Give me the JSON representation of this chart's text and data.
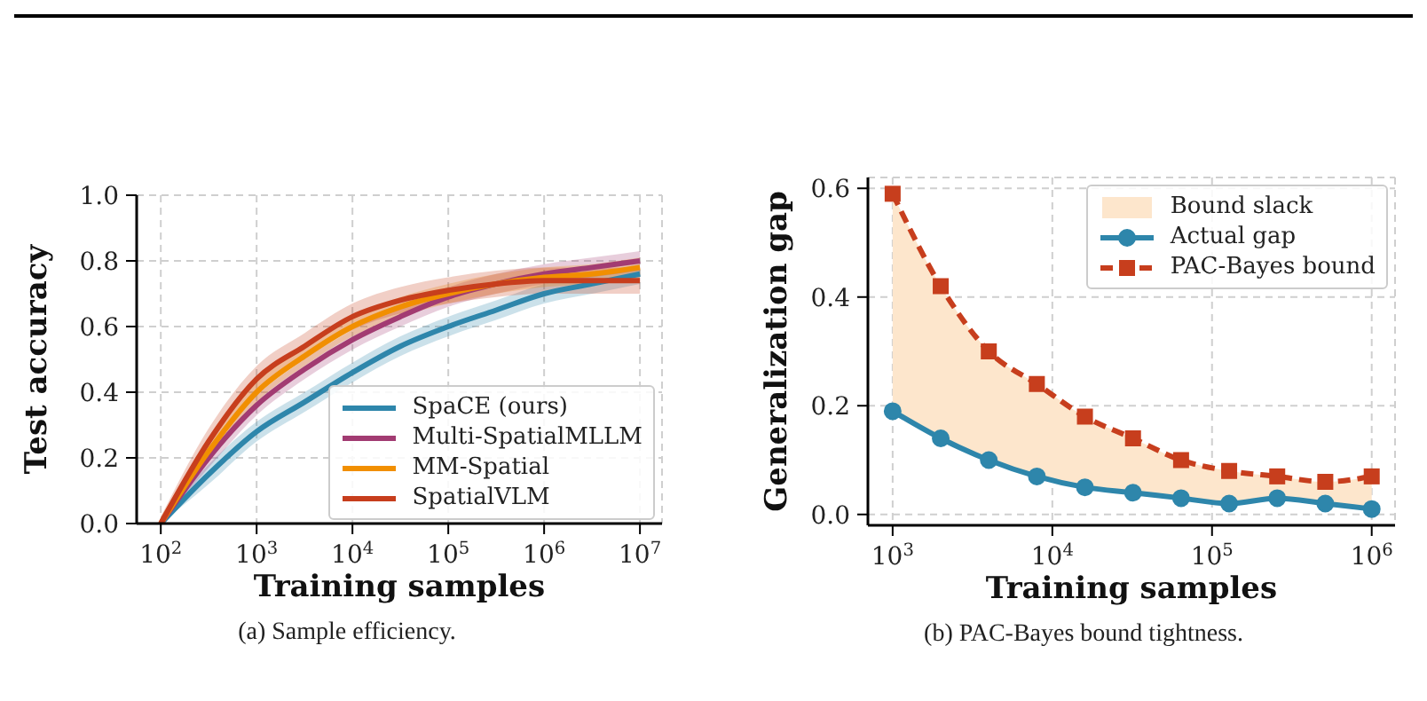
{
  "chart_data": [
    {
      "type": "line",
      "xlabel": "Training samples",
      "ylabel": "Test accuracy",
      "annotations": [
        "(a) Sample efficiency."
      ],
      "x": [
        100,
        316,
        1000,
        3162,
        10000,
        31623,
        100000,
        316228,
        1000000,
        3162278,
        10000000
      ],
      "series": [
        {
          "name": "SpaCE (ours)",
          "color": "#2e86ab",
          "values": [
            0,
            0.15,
            0.28,
            0.37,
            0.46,
            0.54,
            0.6,
            0.65,
            0.7,
            0.73,
            0.76
          ],
          "lower": [
            0,
            0.12,
            0.25,
            0.34,
            0.43,
            0.51,
            0.57,
            0.62,
            0.67,
            0.7,
            0.73
          ],
          "upper": [
            0.02,
            0.18,
            0.31,
            0.4,
            0.49,
            0.57,
            0.63,
            0.68,
            0.73,
            0.76,
            0.79
          ]
        },
        {
          "name": "Multi-SpatialMLLM",
          "color": "#a23b72",
          "values": [
            0,
            0.2,
            0.36,
            0.47,
            0.56,
            0.63,
            0.69,
            0.73,
            0.76,
            0.78,
            0.8
          ],
          "lower": [
            0,
            0.17,
            0.33,
            0.44,
            0.53,
            0.6,
            0.66,
            0.7,
            0.73,
            0.75,
            0.77
          ],
          "upper": [
            0.02,
            0.23,
            0.39,
            0.5,
            0.59,
            0.66,
            0.72,
            0.76,
            0.79,
            0.81,
            0.83
          ]
        },
        {
          "name": "MM-Spatial",
          "color": "#f18f01",
          "values": [
            0,
            0.22,
            0.4,
            0.51,
            0.6,
            0.66,
            0.7,
            0.73,
            0.75,
            0.76,
            0.78
          ],
          "lower": [
            0,
            0.19,
            0.37,
            0.48,
            0.57,
            0.63,
            0.67,
            0.7,
            0.72,
            0.73,
            0.75
          ],
          "upper": [
            0.02,
            0.25,
            0.43,
            0.54,
            0.63,
            0.69,
            0.73,
            0.76,
            0.78,
            0.79,
            0.81
          ]
        },
        {
          "name": "SpatialVLM",
          "color": "#c73e1d",
          "values": [
            0,
            0.25,
            0.44,
            0.54,
            0.63,
            0.68,
            0.71,
            0.73,
            0.74,
            0.74,
            0.74
          ],
          "lower": [
            0,
            0.21,
            0.4,
            0.5,
            0.59,
            0.64,
            0.67,
            0.69,
            0.7,
            0.7,
            0.7
          ],
          "upper": [
            0.02,
            0.29,
            0.48,
            0.58,
            0.67,
            0.72,
            0.75,
            0.77,
            0.78,
            0.78,
            0.78
          ]
        }
      ],
      "log": "x",
      "xlim": [
        56,
        17000000
      ],
      "xticks": [
        {
          "value": 100,
          "label": "10$^{2}$"
        },
        {
          "value": 1000,
          "label": "10$^{3}$"
        },
        {
          "value": 10000,
          "label": "10$^{4}$"
        },
        {
          "value": 100000,
          "label": "10$^{5}$"
        },
        {
          "value": 1000000,
          "label": "10$^{6}$"
        },
        {
          "value": 10000000,
          "label": "10$^{7}$"
        }
      ],
      "ylim": [
        0,
        1
      ],
      "yticks": [
        {
          "value": 0,
          "label": "0.0"
        },
        {
          "value": 0.2,
          "label": "0.2"
        },
        {
          "value": 0.4,
          "label": "0.4"
        },
        {
          "value": 0.6,
          "label": "0.6"
        },
        {
          "value": 0.8,
          "label": "0.8"
        },
        {
          "value": 1,
          "label": "1.0"
        }
      ],
      "grid": true,
      "legend": "bottom right"
    },
    {
      "type": "line",
      "xlabel": "Training samples",
      "ylabel": "Generalization gap",
      "annotations": [
        "(b) PAC-Bayes bound tightness."
      ],
      "x": [
        1000,
        2000,
        4000,
        8000,
        16000,
        32000,
        64000,
        128000,
        256000,
        512000,
        1000000
      ],
      "series": [
        {
          "name": "Bound slack",
          "type": "area",
          "color": "#fde6cc",
          "values": [
            null,
            null,
            null,
            null,
            null,
            null,
            null,
            null,
            null,
            null,
            null
          ],
          "lower": [
            0.19,
            0.14,
            0.1,
            0.07,
            0.05,
            0.04,
            0.03,
            0.02,
            0.03,
            0.02,
            0.01
          ],
          "upper": [
            0.59,
            0.42,
            0.3,
            0.24,
            0.18,
            0.14,
            0.1,
            0.08,
            0.07,
            0.06,
            0.07
          ]
        },
        {
          "name": "Actual gap",
          "color": "#2e86ab",
          "marker": "circle",
          "values": [
            0.19,
            0.14,
            0.1,
            0.07,
            0.05,
            0.04,
            0.03,
            0.02,
            0.03,
            0.02,
            0.01
          ]
        },
        {
          "name": "PAC-Bayes bound",
          "color": "#c73e1d",
          "marker": "square",
          "line_style": "dashed",
          "values": [
            0.59,
            0.42,
            0.3,
            0.24,
            0.18,
            0.14,
            0.1,
            0.08,
            0.07,
            0.06,
            0.07
          ]
        }
      ],
      "log": "x",
      "xlim": [
        700,
        1400000
      ],
      "xticks": [
        {
          "value": 1000,
          "label": "10$^{3}$"
        },
        {
          "value": 10000,
          "label": "10$^{4}$"
        },
        {
          "value": 100000,
          "label": "10$^{5}$"
        },
        {
          "value": 1000000,
          "label": "10$^{6}$"
        }
      ],
      "ylim": [
        -0.02,
        0.62
      ],
      "yticks": [
        {
          "value": 0,
          "label": "0.0"
        },
        {
          "value": 0.2,
          "label": "0.2"
        },
        {
          "value": 0.4,
          "label": "0.4"
        },
        {
          "value": 0.6,
          "label": "0.6"
        }
      ],
      "grid": true,
      "legend": "top right"
    }
  ]
}
